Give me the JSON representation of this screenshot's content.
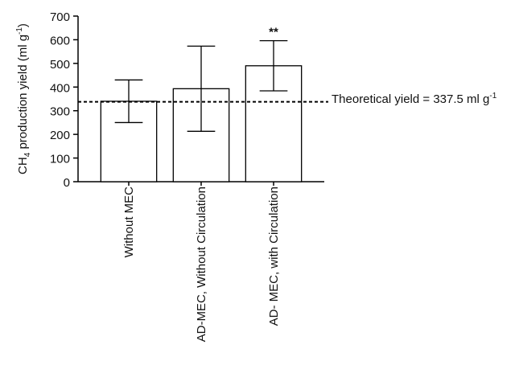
{
  "chart_data": {
    "type": "bar",
    "y_label_parts": [
      "CH",
      "4",
      " production yield (ml g",
      "-1",
      ")"
    ],
    "categories": [
      "Without MEC",
      "AD-MEC, Without Circulation",
      "AD- MEC, with Circulation"
    ],
    "values": [
      340,
      393,
      490
    ],
    "errors": [
      90,
      180,
      106
    ],
    "color": "#ffffff",
    "ylim": [
      0,
      700
    ],
    "yticks": [
      0,
      100,
      200,
      300,
      400,
      500,
      600,
      700
    ],
    "annotation": "**",
    "reference_line": {
      "value": 337.5,
      "label_parts": [
        "Theoretical yield = 337.5 ml g",
        "-1"
      ]
    }
  }
}
